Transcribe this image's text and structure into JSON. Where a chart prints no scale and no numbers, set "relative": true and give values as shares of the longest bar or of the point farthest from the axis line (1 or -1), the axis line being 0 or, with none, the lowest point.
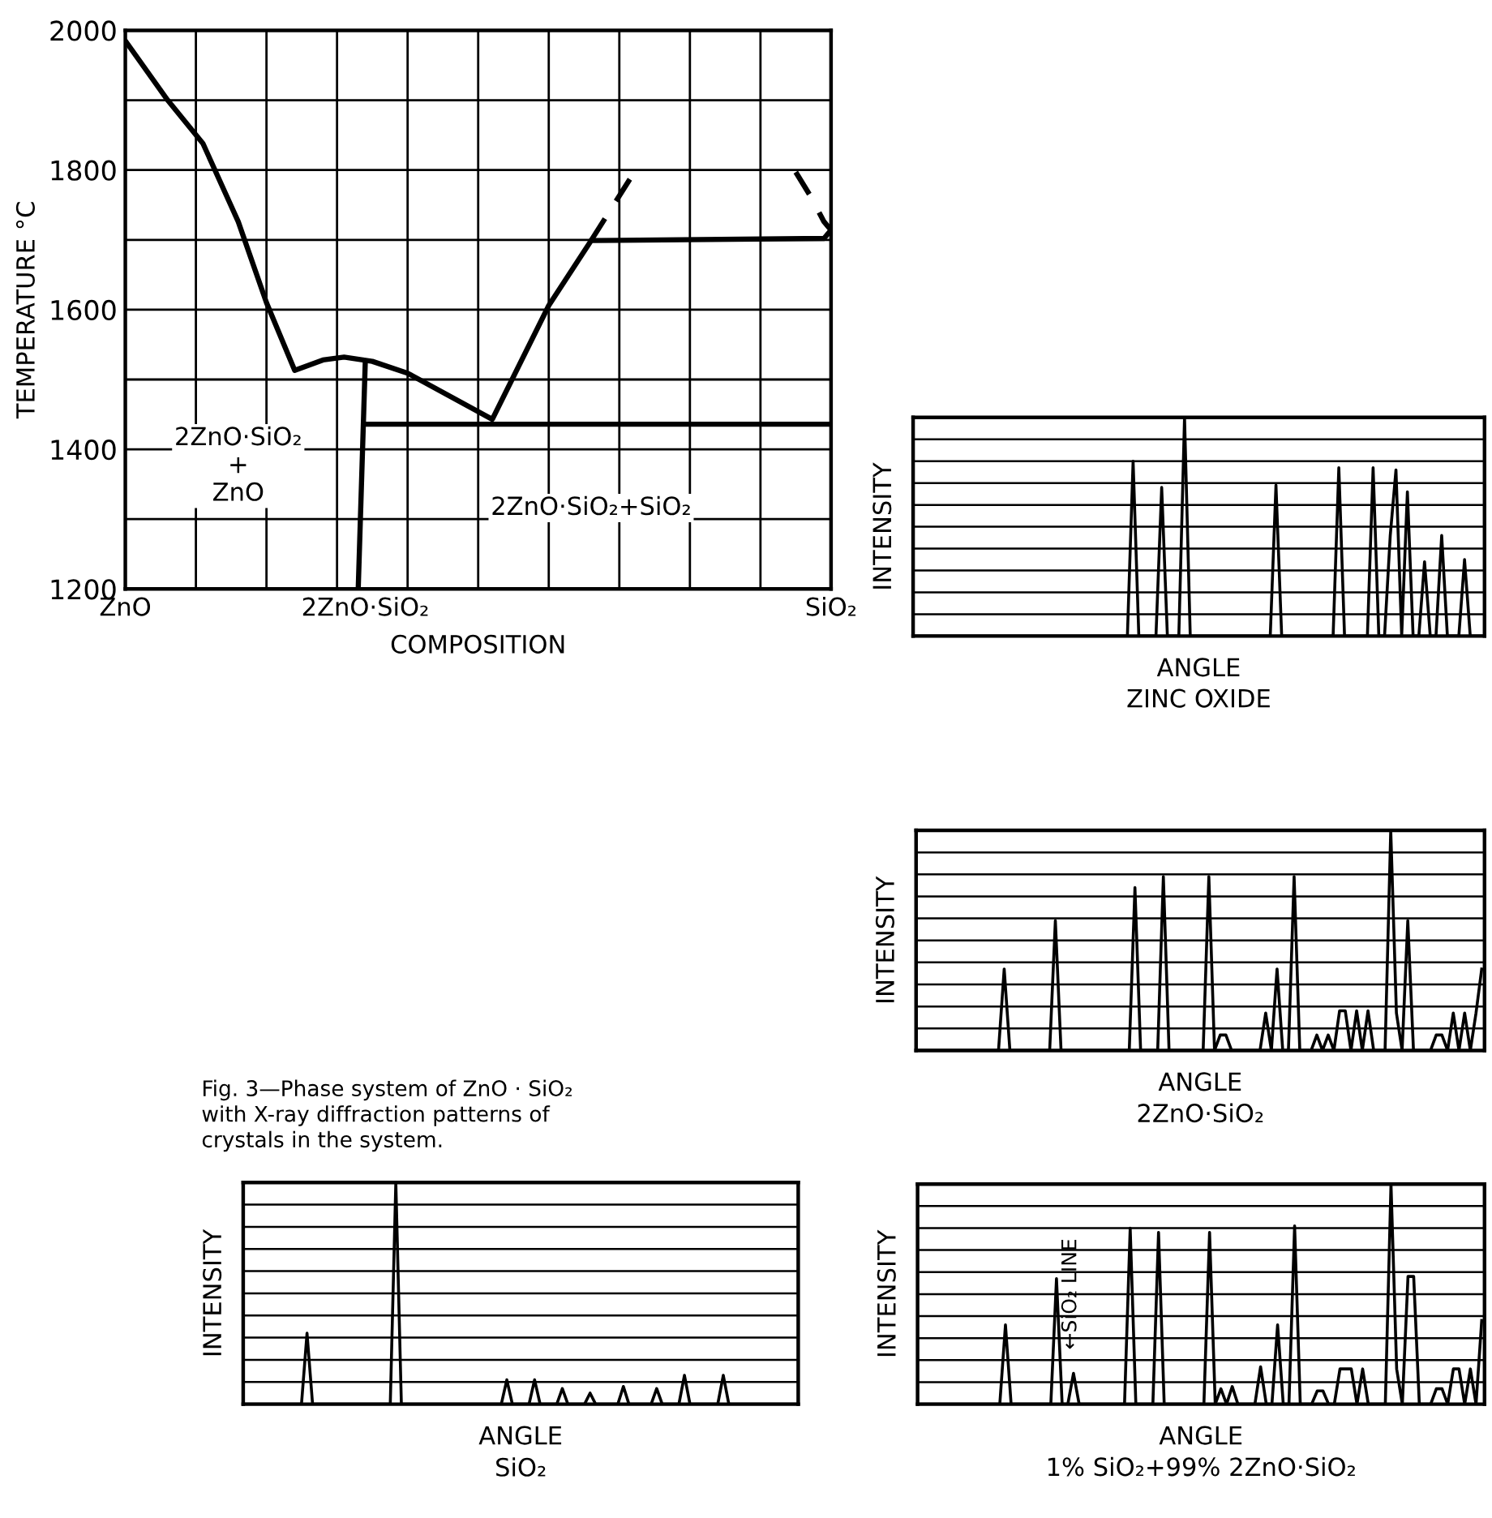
{
  "chart_data": [
    {
      "type": "line",
      "xlabel": "COMPOSITION",
      "ylabel": "TEMPERATURE °C",
      "grid": true,
      "ylim": [
        1200,
        2000
      ],
      "categories": [
        "ZnO",
        null,
        null,
        null,
        null,
        null,
        null,
        null,
        null,
        null,
        null,
        null,
        null,
        null,
        null,
        null,
        null,
        null,
        null,
        null,
        null,
        null,
        null,
        null,
        null,
        null,
        null,
        null,
        null,
        null,
        null,
        null,
        null,
        null,
        "2ZnO·SiO₂",
        null,
        null,
        null,
        null,
        null,
        null,
        null,
        null,
        null,
        null,
        null,
        null,
        null,
        null,
        null,
        null,
        null,
        null,
        null,
        null,
        null,
        null,
        null,
        null,
        null,
        null,
        null,
        null,
        null,
        null,
        null,
        null,
        null,
        null,
        null,
        null,
        null,
        null,
        null,
        null,
        null,
        null,
        null,
        null,
        null,
        null,
        null,
        null,
        null,
        null,
        null,
        null,
        null,
        null,
        null,
        null,
        null,
        null,
        null,
        null,
        null,
        null,
        null,
        null,
        null,
        "SiO₂"
      ],
      "yticks": [
        1200,
        {
          "value": 1300,
          "label": null
        },
        1400,
        {
          "value": 1500,
          "label": null
        },
        1600,
        {
          "value": 1700,
          "label": null
        },
        1800,
        {
          "value": 1900,
          "label": null
        },
        2000
      ],
      "series": [
        {
          "color": "#000000",
          "line_style": "solid",
          "values": [
            1985,
            null,
            null,
            null,
            null,
            null,
            1900,
            null,
            null,
            null,
            null,
            1838,
            null,
            null,
            null,
            null,
            1726,
            null,
            null,
            null,
            1610,
            null,
            null,
            null,
            1513,
            null,
            null,
            null,
            1528,
            null,
            null,
            1532,
            null,
            null,
            null,
            1526,
            null,
            null,
            null,
            null,
            1509,
            null,
            null,
            null,
            null,
            null,
            null,
            null,
            null,
            null,
            null,
            null,
            1443,
            null,
            null,
            null,
            null,
            null,
            null,
            null,
            1606,
            null,
            null,
            null,
            null,
            null,
            1699,
            null,
            null,
            null,
            null,
            null,
            null,
            null,
            null,
            null,
            null,
            null,
            null,
            null,
            null,
            null,
            null,
            null,
            null,
            null,
            null,
            null,
            null,
            null,
            null,
            null,
            null,
            null,
            null,
            null,
            null,
            null,
            null,
            1702,
            1714
          ]
        },
        {
          "color": "#000000",
          "line_style": "solid",
          "values": [
            null,
            null,
            null,
            null,
            null,
            null,
            null,
            null,
            null,
            null,
            null,
            null,
            null,
            null,
            null,
            null,
            null,
            null,
            null,
            null,
            null,
            null,
            null,
            null,
            null,
            null,
            null,
            null,
            null,
            null,
            null,
            null,
            null,
            1200,
            1525,
            null,
            null,
            null,
            null,
            null,
            null,
            null,
            null,
            null,
            null,
            null,
            null,
            null,
            null,
            null,
            null,
            null,
            null,
            null,
            null,
            null,
            null,
            null,
            null,
            null,
            null,
            null,
            null,
            null,
            null,
            null,
            null,
            null,
            null,
            null,
            null,
            null,
            null,
            null,
            null,
            null,
            null,
            null,
            null,
            null,
            null,
            null,
            null,
            null,
            null,
            null,
            null,
            null,
            null,
            null,
            null,
            null,
            null,
            null,
            null,
            null,
            null,
            null,
            null,
            null,
            null
          ]
        },
        {
          "color": "#000000",
          "line_style": "solid",
          "values": [
            null,
            null,
            null,
            null,
            null,
            null,
            null,
            null,
            null,
            null,
            null,
            null,
            null,
            null,
            null,
            null,
            null,
            null,
            null,
            null,
            null,
            null,
            null,
            null,
            null,
            null,
            null,
            null,
            null,
            null,
            null,
            null,
            null,
            null,
            1436,
            null,
            null,
            null,
            null,
            null,
            null,
            null,
            null,
            null,
            null,
            null,
            null,
            null,
            null,
            null,
            null,
            null,
            null,
            null,
            null,
            null,
            null,
            null,
            null,
            null,
            null,
            null,
            null,
            null,
            null,
            null,
            null,
            null,
            null,
            null,
            null,
            null,
            null,
            null,
            null,
            null,
            null,
            null,
            null,
            null,
            null,
            null,
            null,
            null,
            null,
            null,
            null,
            null,
            null,
            null,
            null,
            null,
            null,
            null,
            null,
            null,
            null,
            null,
            null,
            null,
            1436
          ]
        },
        {
          "color": "#000000",
          "line_style": "dashed",
          "values": [
            null,
            null,
            null,
            null,
            null,
            null,
            null,
            null,
            null,
            null,
            null,
            null,
            null,
            null,
            null,
            null,
            null,
            null,
            null,
            null,
            null,
            null,
            null,
            null,
            null,
            null,
            null,
            null,
            null,
            null,
            null,
            null,
            null,
            null,
            null,
            null,
            null,
            null,
            null,
            null,
            null,
            null,
            null,
            null,
            null,
            null,
            null,
            null,
            null,
            null,
            null,
            null,
            null,
            null,
            null,
            null,
            null,
            null,
            null,
            null,
            null,
            null,
            null,
            null,
            null,
            null,
            1699,
            null,
            null,
            null,
            null,
            null,
            null,
            1811,
            null,
            null,
            null,
            null,
            null,
            null,
            null,
            null,
            null,
            null,
            null,
            null,
            null,
            null,
            null,
            null,
            null,
            null,
            null,
            null,
            null,
            null,
            null,
            null,
            null,
            null,
            null
          ]
        },
        {
          "color": "#000000",
          "line_style": "dashed",
          "values": [
            null,
            null,
            null,
            null,
            null,
            null,
            null,
            null,
            null,
            null,
            null,
            null,
            null,
            null,
            null,
            null,
            null,
            null,
            null,
            null,
            null,
            null,
            null,
            null,
            null,
            null,
            null,
            null,
            null,
            null,
            null,
            null,
            null,
            null,
            null,
            null,
            null,
            null,
            null,
            null,
            null,
            null,
            null,
            null,
            null,
            null,
            null,
            null,
            null,
            null,
            null,
            null,
            null,
            null,
            null,
            null,
            null,
            null,
            null,
            null,
            null,
            null,
            null,
            null,
            null,
            null,
            null,
            null,
            null,
            null,
            null,
            null,
            null,
            null,
            null,
            null,
            null,
            null,
            null,
            null,
            null,
            null,
            null,
            null,
            null,
            null,
            null,
            null,
            null,
            null,
            null,
            null,
            null,
            null,
            null,
            1797,
            null,
            1764,
            null,
            1726,
            1714
          ]
        }
      ],
      "annotations": [
        "2ZnO·SiO₂\n+\nZnO",
        "2ZnO·SiO₂+SiO₂",
        "Fig. 3—Phase system of ZnO · SiO₂\nwith X-ray diffraction patterns of\ncrystals in the system."
      ]
    },
    {
      "type": "line",
      "relative": true,
      "grid": "y",
      "xlabel": "ANGLE",
      "ylabel": "INTENSITY",
      "title": "ZINC OXIDE",
      "color": "#000000",
      "categories": [
        null,
        null,
        null,
        null,
        null,
        null,
        null,
        null,
        null,
        null,
        null,
        null,
        null,
        null,
        null,
        null,
        null,
        null,
        null,
        null,
        null,
        null,
        null,
        null,
        null,
        null,
        null,
        null,
        null,
        null,
        null,
        null,
        null,
        null,
        null,
        null,
        null,
        null,
        null,
        null,
        null,
        null,
        null,
        null,
        null,
        null,
        null,
        null,
        null,
        null,
        null,
        null,
        null,
        null,
        null,
        null,
        null,
        null,
        null,
        null,
        null,
        null,
        null,
        null,
        null,
        null,
        null,
        null,
        null,
        null,
        null,
        null,
        null,
        null,
        null,
        null,
        null,
        null,
        null,
        null,
        null,
        null,
        null,
        null,
        null,
        null,
        null,
        null,
        null,
        null,
        null,
        null,
        null,
        null,
        null,
        null,
        null,
        null,
        null,
        null
      ],
      "values": [
        0,
        0,
        0,
        0,
        0,
        0,
        0,
        0,
        0,
        0,
        0,
        0,
        0,
        0,
        0,
        0,
        0,
        0,
        0,
        0,
        0,
        0,
        0,
        0,
        0,
        0,
        0,
        0,
        0,
        0,
        0,
        0,
        0,
        0,
        0,
        0,
        0,
        0,
        0.8,
        0,
        0,
        0,
        0,
        0.68,
        0,
        0,
        0,
        1.0,
        0,
        0,
        0,
        0,
        0,
        0,
        0,
        0,
        0,
        0,
        0,
        0,
        0,
        0,
        0,
        0.69,
        0,
        0,
        0,
        0,
        0,
        0,
        0,
        0,
        0,
        0,
        0.77,
        0,
        0,
        0,
        0,
        0,
        0.77,
        0,
        0,
        0.46,
        0.76,
        0,
        0.66,
        0,
        0,
        0.34,
        0,
        0,
        0.46,
        0,
        0,
        0,
        0.35,
        0,
        0,
        0
      ]
    },
    {
      "type": "line",
      "relative": true,
      "grid": "y",
      "xlabel": "ANGLE",
      "ylabel": "INTENSITY",
      "title": "2ZnO·SiO₂",
      "color": "#000000",
      "categories": [
        null,
        null,
        null,
        null,
        null,
        null,
        null,
        null,
        null,
        null,
        null,
        null,
        null,
        null,
        null,
        null,
        null,
        null,
        null,
        null,
        null,
        null,
        null,
        null,
        null,
        null,
        null,
        null,
        null,
        null,
        null,
        null,
        null,
        null,
        null,
        null,
        null,
        null,
        null,
        null,
        null,
        null,
        null,
        null,
        null,
        null,
        null,
        null,
        null,
        null,
        null,
        null,
        null,
        null,
        null,
        null,
        null,
        null,
        null,
        null,
        null,
        null,
        null,
        null,
        null,
        null,
        null,
        null,
        null,
        null,
        null,
        null,
        null,
        null,
        null,
        null,
        null,
        null,
        null,
        null,
        null,
        null,
        null,
        null,
        null,
        null,
        null,
        null,
        null,
        null,
        null,
        null,
        null,
        null,
        null,
        null,
        null,
        null,
        null,
        null
      ],
      "values": [
        0,
        0,
        0,
        0,
        0,
        0,
        0,
        0,
        0,
        0,
        0,
        0,
        0,
        0,
        0,
        0.37,
        0,
        0,
        0,
        0,
        0,
        0,
        0,
        0,
        0.59,
        0,
        0,
        0,
        0,
        0,
        0,
        0,
        0,
        0,
        0,
        0,
        0,
        0,
        0.74,
        0,
        0,
        0,
        0,
        0.79,
        0,
        0,
        0,
        0,
        0,
        0,
        0,
        0.79,
        0,
        0.07,
        0.07,
        0,
        0,
        0,
        0,
        0,
        0,
        0.17,
        0,
        0.37,
        0,
        0,
        0.79,
        0,
        0,
        0,
        0.07,
        0,
        0.07,
        0,
        0.18,
        0.18,
        0,
        0.18,
        0,
        0.18,
        0,
        0,
        0,
        1.0,
        0.17,
        0,
        0.59,
        0,
        0,
        0,
        0,
        0.07,
        0.07,
        0,
        0.17,
        0,
        0.17,
        0,
        0.17,
        0.37
      ]
    },
    {
      "type": "line",
      "relative": true,
      "grid": "y",
      "xlabel": "ANGLE",
      "ylabel": "INTENSITY",
      "title": "SiO₂",
      "color": "#000000",
      "categories": [
        null,
        null,
        null,
        null,
        null,
        null,
        null,
        null,
        null,
        null,
        null,
        null,
        null,
        null,
        null,
        null,
        null,
        null,
        null,
        null,
        null,
        null,
        null,
        null,
        null,
        null,
        null,
        null,
        null,
        null,
        null,
        null,
        null,
        null,
        null,
        null,
        null,
        null,
        null,
        null,
        null,
        null,
        null,
        null,
        null,
        null,
        null,
        null,
        null,
        null,
        null,
        null,
        null,
        null,
        null,
        null,
        null,
        null,
        null,
        null,
        null,
        null,
        null,
        null,
        null,
        null,
        null,
        null,
        null,
        null,
        null,
        null,
        null,
        null,
        null,
        null,
        null,
        null,
        null,
        null,
        null,
        null,
        null,
        null,
        null,
        null,
        null,
        null,
        null,
        null,
        null,
        null,
        null,
        null,
        null,
        null,
        null,
        null,
        null,
        null
      ],
      "values": [
        0,
        0,
        0,
        0,
        0,
        0,
        0,
        0,
        0,
        0,
        0,
        0.32,
        0,
        0,
        0,
        0,
        0,
        0,
        0,
        0,
        0,
        0,
        0,
        0,
        0,
        0,
        0,
        1.0,
        0,
        0,
        0,
        0,
        0,
        0,
        0,
        0,
        0,
        0,
        0,
        0,
        0,
        0,
        0,
        0,
        0,
        0,
        0,
        0.11,
        0,
        0,
        0,
        0,
        0.11,
        0,
        0,
        0,
        0,
        0.07,
        0,
        0,
        0,
        0,
        0.05,
        0,
        0,
        0,
        0,
        0,
        0.08,
        0,
        0,
        0,
        0,
        0,
        0.07,
        0,
        0,
        0,
        0,
        0.13,
        0,
        0,
        0,
        0,
        0,
        0,
        0.13,
        0,
        0,
        0,
        0,
        0,
        0,
        0,
        0,
        0,
        0,
        0,
        0,
        0
      ]
    },
    {
      "type": "line",
      "relative": true,
      "grid": "y",
      "xlabel": "ANGLE",
      "ylabel": "INTENSITY",
      "title": "1% SiO₂+99% 2ZnO·SiO₂",
      "color": "#000000",
      "annotations": [
        "←SiO₂ LINE"
      ],
      "categories": [
        null,
        null,
        null,
        null,
        null,
        null,
        null,
        null,
        null,
        null,
        null,
        null,
        null,
        null,
        null,
        null,
        null,
        null,
        null,
        null,
        null,
        null,
        null,
        null,
        null,
        null,
        null,
        null,
        null,
        null,
        null,
        null,
        null,
        null,
        null,
        null,
        null,
        null,
        null,
        null,
        null,
        null,
        null,
        null,
        null,
        null,
        null,
        null,
        null,
        null,
        null,
        null,
        null,
        null,
        null,
        null,
        null,
        null,
        null,
        null,
        null,
        null,
        null,
        null,
        null,
        null,
        null,
        null,
        null,
        null,
        null,
        null,
        null,
        null,
        null,
        null,
        null,
        null,
        null,
        null,
        null,
        null,
        null,
        null,
        null,
        null,
        null,
        null,
        null,
        null,
        null,
        null,
        null,
        null,
        null,
        null,
        null,
        null,
        null,
        null
      ],
      "values": [
        0,
        0,
        0,
        0,
        0,
        0,
        0,
        0,
        0,
        0,
        0,
        0,
        0,
        0,
        0,
        0.36,
        0,
        0,
        0,
        0,
        0,
        0,
        0,
        0,
        0.57,
        0,
        0,
        0.14,
        0,
        0,
        0,
        0,
        0,
        0,
        0,
        0,
        0,
        0.8,
        0,
        0,
        0,
        0,
        0.78,
        0,
        0,
        0,
        0,
        0,
        0,
        0,
        0,
        0.78,
        0,
        0.07,
        0,
        0.08,
        0,
        0,
        0,
        0,
        0.17,
        0,
        0,
        0.36,
        0,
        0,
        0.81,
        0,
        0,
        0,
        0.06,
        0.06,
        0,
        0,
        0.16,
        0.16,
        0.16,
        0,
        0.16,
        0,
        0,
        0,
        0,
        1.0,
        0.16,
        0,
        0.58,
        0.58,
        0,
        0,
        0,
        0.07,
        0.07,
        0,
        0.16,
        0.16,
        0,
        0.16,
        0,
        0.38
      ]
    }
  ]
}
